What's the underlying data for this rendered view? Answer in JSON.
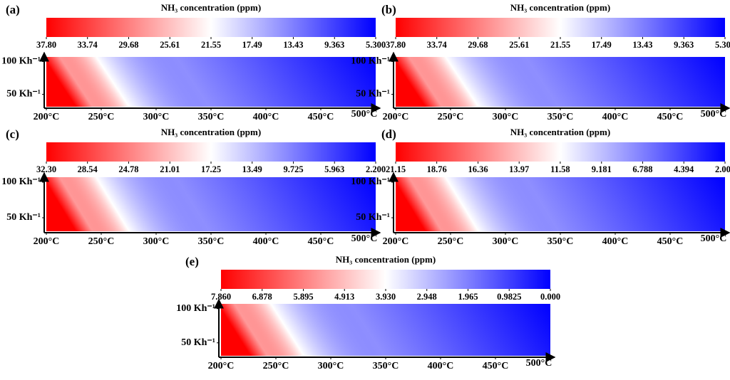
{
  "chart_data": [
    {
      "type": "contour",
      "panel": "(a)",
      "title": "NH₃ concentration (ppm)",
      "cmap": [
        "#ff0000",
        "#ffffff",
        "#0000ff"
      ],
      "clim": [
        37.8,
        5.3
      ],
      "cticks": [
        {
          "value": 37.8,
          "label": "37.80"
        },
        33.74,
        29.68,
        25.61,
        21.55,
        17.49,
        13.43,
        9.363,
        {
          "value": 5.3,
          "label": "5.300"
        }
      ],
      "xlim": [
        200,
        500
      ],
      "xticks": [
        {
          "value": 200,
          "label": "200°C"
        },
        {
          "value": 250,
          "label": "250°C"
        },
        {
          "value": 300,
          "label": "300°C"
        },
        {
          "value": 350,
          "label": "350°C"
        },
        {
          "value": 400,
          "label": "400°C"
        },
        {
          "value": 450,
          "label": "450°C"
        },
        {
          "value": 500,
          "label": "500°C"
        }
      ],
      "ylim": [
        31,
        107
      ],
      "yticks": [
        {
          "value": 50,
          "label": "50 Kh⁻¹"
        },
        {
          "value": 100,
          "label": "100 Kh⁻¹"
        }
      ]
    },
    {
      "type": "contour",
      "panel": "(b)",
      "title": "NH₃ concentration (ppm)",
      "cmap": [
        "#ff0000",
        "#ffffff",
        "#0000ff"
      ],
      "clim": [
        37.8,
        5.3
      ],
      "cticks": [
        {
          "value": 37.8,
          "label": "37.80"
        },
        33.74,
        29.68,
        25.61,
        21.55,
        17.49,
        13.43,
        9.363,
        {
          "value": 5.3,
          "label": "5.300"
        }
      ],
      "xlim": [
        200,
        500
      ],
      "xticks": [
        {
          "value": 200,
          "label": "200°C"
        },
        {
          "value": 250,
          "label": "250°C"
        },
        {
          "value": 300,
          "label": "300°C"
        },
        {
          "value": 350,
          "label": "350°C"
        },
        {
          "value": 400,
          "label": "400°C"
        },
        {
          "value": 450,
          "label": "450°C"
        },
        {
          "value": 500,
          "label": "500°C"
        }
      ],
      "ylim": [
        31,
        107
      ],
      "yticks": [
        {
          "value": 50,
          "label": "50 Kh⁻¹"
        },
        {
          "value": 100,
          "label": "100 Kh⁻¹"
        }
      ]
    },
    {
      "type": "contour",
      "panel": "(c)",
      "title": "NH₃ concentration (ppm)",
      "cmap": [
        "#ff0000",
        "#ffffff",
        "#0000ff"
      ],
      "clim": [
        32.3,
        2.2
      ],
      "cticks": [
        {
          "value": 32.3,
          "label": "32.30"
        },
        28.54,
        24.78,
        21.01,
        17.25,
        13.49,
        9.725,
        5.963,
        {
          "value": 2.2,
          "label": "2.200"
        }
      ],
      "xlim": [
        200,
        500
      ],
      "xticks": [
        {
          "value": 200,
          "label": "200°C"
        },
        {
          "value": 250,
          "label": "250°C"
        },
        {
          "value": 300,
          "label": "300°C"
        },
        {
          "value": 350,
          "label": "350°C"
        },
        {
          "value": 400,
          "label": "400°C"
        },
        {
          "value": 450,
          "label": "450°C"
        },
        {
          "value": 500,
          "label": "500°C"
        }
      ],
      "ylim": [
        31,
        107
      ],
      "yticks": [
        {
          "value": 50,
          "label": "50 Kh⁻¹"
        },
        {
          "value": 100,
          "label": "100 Kh⁻¹"
        }
      ]
    },
    {
      "type": "contour",
      "panel": "(d)",
      "title": "NH₃ concentration (ppm)",
      "cmap": [
        "#ff0000",
        "#ffffff",
        "#0000ff"
      ],
      "clim": [
        21.15,
        2.0
      ],
      "cticks": [
        21.15,
        18.76,
        16.36,
        13.97,
        11.58,
        9.181,
        6.788,
        4.394,
        {
          "value": 2.0,
          "label": "2.000"
        }
      ],
      "xlim": [
        200,
        500
      ],
      "xticks": [
        {
          "value": 200,
          "label": "200°C"
        },
        {
          "value": 250,
          "label": "250°C"
        },
        {
          "value": 300,
          "label": "300°C"
        },
        {
          "value": 350,
          "label": "350°C"
        },
        {
          "value": 400,
          "label": "400°C"
        },
        {
          "value": 450,
          "label": "450°C"
        },
        {
          "value": 500,
          "label": "500°C"
        }
      ],
      "ylim": [
        31,
        107
      ],
      "yticks": [
        {
          "value": 50,
          "label": "50 Kh⁻¹"
        },
        {
          "value": 100,
          "label": "100 Kh⁻¹"
        }
      ]
    },
    {
      "type": "contour",
      "panel": "(e)",
      "title": "NH₃ concentration (ppm)",
      "cmap": [
        "#ff0000",
        "#ffffff",
        "#0000ff"
      ],
      "clim": [
        7.86,
        0.0
      ],
      "cticks": [
        {
          "value": 7.86,
          "label": "7.860"
        },
        6.878,
        5.895,
        4.913,
        {
          "value": 3.93,
          "label": "3.930"
        },
        2.948,
        1.965,
        0.9825,
        {
          "value": 0,
          "label": "0.000"
        }
      ],
      "xlim": [
        200,
        500
      ],
      "xticks": [
        {
          "value": 200,
          "label": "200°C"
        },
        {
          "value": 250,
          "label": "250°C"
        },
        {
          "value": 300,
          "label": "300°C"
        },
        {
          "value": 350,
          "label": "350°C"
        },
        {
          "value": 400,
          "label": "400°C"
        },
        {
          "value": 450,
          "label": "450°C"
        },
        {
          "value": 500,
          "label": "500°C"
        }
      ],
      "ylim": [
        31,
        107
      ],
      "yticks": [
        {
          "value": 50,
          "label": "50 Kh⁻¹"
        },
        {
          "value": 100,
          "label": "100 Kh⁻¹"
        }
      ]
    }
  ]
}
